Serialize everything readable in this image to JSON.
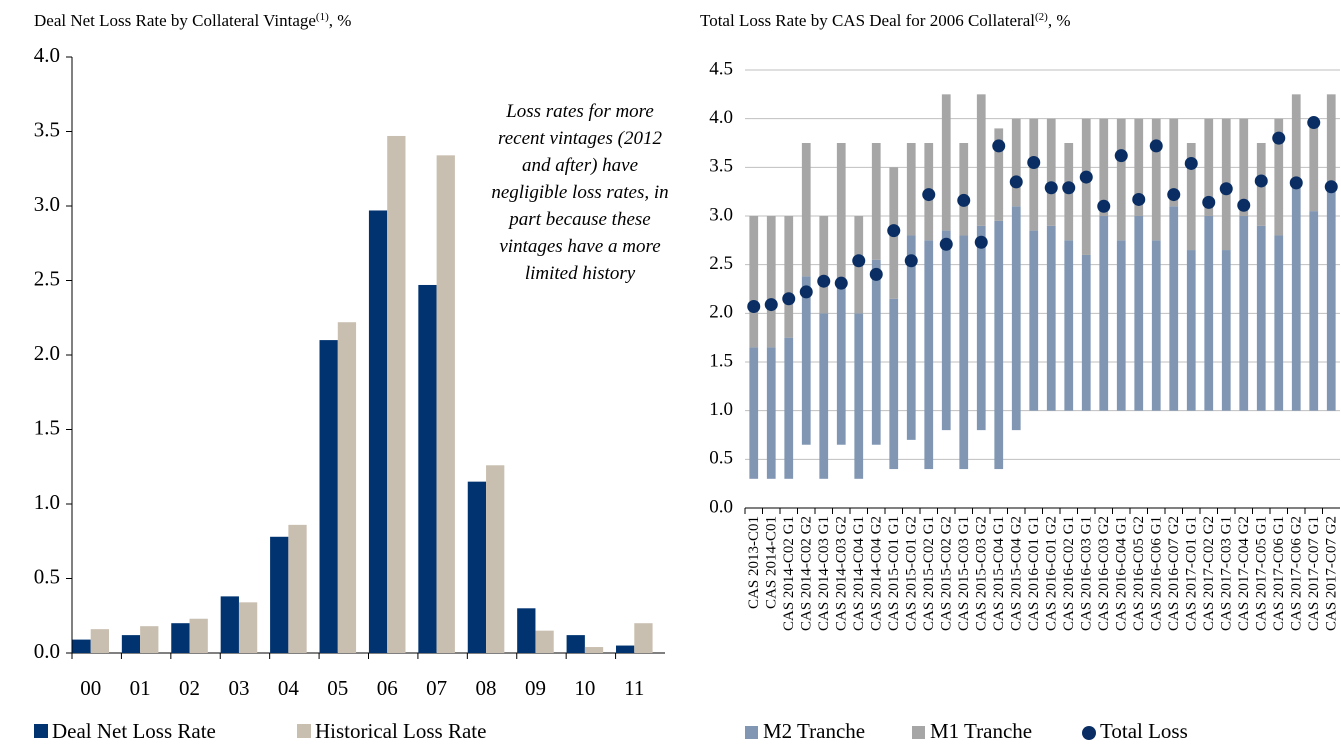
{
  "chart_data": [
    {
      "type": "bar",
      "title": "Deal Net Loss Rate by Collateral Vintage",
      "title_note": "(1)",
      "title_unit": ", %",
      "annotation": "Loss rates for more recent vintages (2012 and after) have negligible loss rates, in part because these vintages have a more limited history",
      "categories": [
        "00",
        "01",
        "02",
        "03",
        "04",
        "05",
        "06",
        "07",
        "08",
        "09",
        "10",
        "11"
      ],
      "series": [
        {
          "name": "Deal Net Loss Rate",
          "color": "#003370",
          "values": [
            0.09,
            0.12,
            0.2,
            0.38,
            0.78,
            2.1,
            2.97,
            2.47,
            1.15,
            0.3,
            0.12,
            0.05
          ]
        },
        {
          "name": "Historical Loss Rate",
          "color": "#c9bfb0",
          "values": [
            0.16,
            0.18,
            0.23,
            0.34,
            0.86,
            2.22,
            3.47,
            3.34,
            1.26,
            0.15,
            0.04,
            0.2
          ]
        }
      ],
      "ylim": [
        0,
        4
      ],
      "yticks": [
        {
          "value": 0,
          "label": "0.0"
        },
        0.5,
        {
          "value": 1,
          "label": "1.0"
        },
        1.5,
        {
          "value": 2,
          "label": "2.0"
        },
        2.5,
        {
          "value": 3,
          "label": "3.0"
        },
        3.5,
        {
          "value": 4,
          "label": "4.0"
        }
      ],
      "grid": false,
      "legend": "bottom"
    },
    {
      "type": "bar",
      "stacked": true,
      "title": "Total Loss Rate by CAS Deal for 2006 Collateral",
      "title_note": "(2)",
      "title_unit": ", %",
      "categories": [
        "CAS 2013-C01",
        "CAS 2014-C01",
        "CAS 2014-C02 G1",
        "CAS 2014-C02 G2",
        "CAS 2014-C03 G1",
        "CAS 2014-C03 G2",
        "CAS 2014-C04 G1",
        "CAS 2014-C04 G2",
        "CAS 2015-C01 G1",
        "CAS 2015-C01 G2",
        "CAS 2015-C02 G1",
        "CAS 2015-C02 G2",
        "CAS 2015-C03 G1",
        "CAS 2015-C03 G2",
        "CAS 2015-C04 G1",
        "CAS 2015-C04 G2",
        "CAS 2016-C01 G1",
        "CAS 2016-C01 G2",
        "CAS 2016-C02 G1",
        "CAS 2016-C03 G1",
        "CAS 2016-C03 G2",
        "CAS 2016-C04 G1",
        "CAS 2016-C05 G2",
        "CAS 2016-C06 G1",
        "CAS 2016-C07 G2",
        "CAS 2017-C01 G1",
        "CAS 2017-C02 G2",
        "CAS 2017-C03 G1",
        "CAS 2017-C04 G2",
        "CAS 2017-C05 G1",
        "CAS 2017-C06 G1",
        "CAS 2017-C06 G2",
        "CAS 2017-C07 G1",
        "CAS 2017-C07 G2"
      ],
      "base": [
        0.3,
        0.3,
        0.3,
        0.65,
        0.3,
        0.65,
        0.3,
        0.65,
        0.4,
        0.7,
        0.4,
        0.8,
        0.4,
        0.8,
        0.4,
        0.8,
        1,
        1,
        1,
        1,
        1,
        1,
        1,
        1,
        1,
        1,
        1,
        1,
        1,
        1,
        1,
        1,
        1,
        1
      ],
      "series": [
        {
          "name": "M2 Tranche",
          "color": "#8096b3",
          "values": [
            1.35,
            1.35,
            1.45,
            1.73,
            1.7,
            1.67,
            1.7,
            1.9,
            1.75,
            2.1,
            2.35,
            2.05,
            2.4,
            2.1,
            2.55,
            2.3,
            1.85,
            1.9,
            1.75,
            1.6,
            2,
            1.75,
            2,
            1.75,
            2.1,
            1.65,
            2,
            1.65,
            2,
            1.9,
            1.8,
            2.3,
            2.05,
            2.25
          ]
        },
        {
          "name": "M1 Tranche",
          "color": "#a6a6a6",
          "values": [
            1.35,
            1.35,
            1.25,
            1.37,
            1,
            1.43,
            1,
            1.2,
            1.35,
            0.95,
            1,
            1.4,
            0.95,
            1.35,
            0.95,
            0.9,
            1.15,
            1.1,
            1,
            1.4,
            1,
            1.25,
            1,
            1.25,
            0.9,
            1.1,
            1,
            1.35,
            1,
            0.85,
            1.2,
            0.95,
            0.95,
            1
          ]
        },
        {
          "name": "Total Loss",
          "type": "scatter",
          "color": "#0a2e63",
          "values": [
            2.07,
            2.09,
            2.15,
            2.22,
            2.33,
            2.31,
            2.54,
            2.4,
            2.85,
            2.54,
            3.22,
            2.71,
            3.16,
            2.73,
            3.72,
            3.35,
            3.55,
            3.29,
            3.29,
            3.4,
            3.1,
            3.62,
            3.17,
            3.72,
            3.22,
            3.54,
            3.14,
            3.28,
            3.11,
            3.36,
            3.8,
            3.34,
            3.96,
            3.3
          ]
        }
      ],
      "ylim": [
        0,
        4.5
      ],
      "yticks": [
        {
          "value": 0,
          "label": "0.0"
        },
        0.5,
        {
          "value": 1,
          "label": "1.0"
        },
        1.5,
        {
          "value": 2,
          "label": "2.0"
        },
        2.5,
        {
          "value": 3,
          "label": "3.0"
        },
        3.5,
        {
          "value": 4,
          "label": "4.0"
        },
        4.5
      ],
      "grid": true,
      "legend": "bottom"
    }
  ]
}
